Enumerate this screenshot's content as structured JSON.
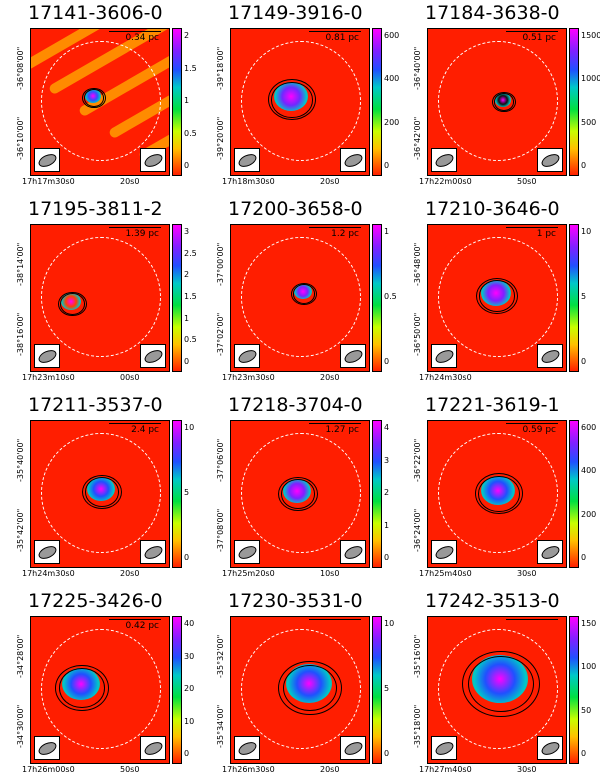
{
  "panels": [
    {
      "name": "17141-3606-0",
      "scale": "0.34 pc",
      "yticks": [
        "-36°08'00\"",
        "-36°10'00\""
      ],
      "xticks": [
        "17h17m30s0",
        "20s0"
      ],
      "cbar": [
        "2",
        "1.5",
        "1",
        "0.5",
        "0"
      ]
    },
    {
      "name": "17149-3916-0",
      "scale": "0.81 pc",
      "yticks": [
        "-39°18'00\"",
        "-39°20'00\""
      ],
      "xticks": [
        "17h18m30s0",
        "20s0"
      ],
      "cbar": [
        "600",
        "400",
        "200",
        "0"
      ]
    },
    {
      "name": "17184-3638-0",
      "scale": "0.51 pc",
      "yticks": [
        "-36°40'00\"",
        "-36°42'00\""
      ],
      "xticks": [
        "17h22m00s0",
        "50s0"
      ],
      "cbar": [
        "1500",
        "1000",
        "500",
        "0"
      ]
    },
    {
      "name": "17195-3811-2",
      "scale": "1.39 pc",
      "yticks": [
        "-38°14'00\"",
        "-38°16'00\""
      ],
      "xticks": [
        "17h23m10s0",
        "00s0"
      ],
      "cbar": [
        "3",
        "2.5",
        "2",
        "1.5",
        "1",
        "0.5",
        "0"
      ]
    },
    {
      "name": "17200-3658-0",
      "scale": "1.2 pc",
      "yticks": [
        "-37°00'00\"",
        "-37°02'00\""
      ],
      "xticks": [
        "17h23m30s0",
        "20s0"
      ],
      "cbar": [
        "1",
        "0.5",
        "0"
      ]
    },
    {
      "name": "17210-3646-0",
      "scale": "1 pc",
      "yticks": [
        "-36°48'00\"",
        "-36°50'00\""
      ],
      "xticks": [
        "17h24m30s0"
      ],
      "cbar": [
        "10",
        "5",
        "0"
      ]
    },
    {
      "name": "17211-3537-0",
      "scale": "2.4 pc",
      "yticks": [
        "-35°40'00\"",
        "-35°42'00\""
      ],
      "xticks": [
        "17h24m30s0",
        "20s0"
      ],
      "cbar": [
        "10",
        "5",
        "0"
      ]
    },
    {
      "name": "17218-3704-0",
      "scale": "1.27 pc",
      "yticks": [
        "-37°06'00\"",
        "-37°08'00\""
      ],
      "xticks": [
        "17h25m20s0",
        "10s0"
      ],
      "cbar": [
        "4",
        "3",
        "2",
        "1",
        "0"
      ]
    },
    {
      "name": "17221-3619-1",
      "scale": "0.59 pc",
      "yticks": [
        "-36°22'00\"",
        "-36°24'00\""
      ],
      "xticks": [
        "17h25m40s0",
        "30s0"
      ],
      "cbar": [
        "600",
        "400",
        "200",
        "0"
      ]
    },
    {
      "name": "17225-3426-0",
      "scale": "0.42 pc",
      "yticks": [
        "-34°28'00\"",
        "-34°30'00\""
      ],
      "xticks": [
        "17h26m00s0",
        "50s0"
      ],
      "cbar": [
        "40",
        "30",
        "20",
        "10",
        "0"
      ]
    },
    {
      "name": "17230-3531-0",
      "scale": "",
      "yticks": [
        "-35°32'00\"",
        "-35°34'00\""
      ],
      "xticks": [
        "17h26m30s0",
        "20s0"
      ],
      "cbar": [
        "10",
        "5",
        "0"
      ]
    },
    {
      "name": "17242-3513-0",
      "scale": "",
      "yticks": [
        "-35°16'00\"",
        "-35°18'00\""
      ],
      "xticks": [
        "17h27m40s0",
        "30s0"
      ],
      "cbar": [
        "150",
        "100",
        "50",
        "0"
      ]
    }
  ]
}
